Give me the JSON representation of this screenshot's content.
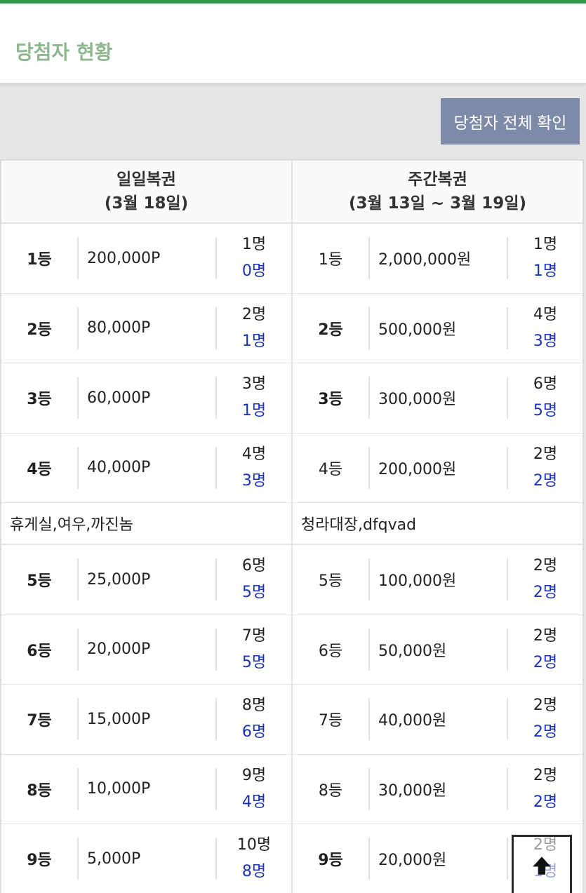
{
  "header": {
    "title": "당첨자 현황"
  },
  "actions": {
    "view_all_label": "당첨자 전체 확인"
  },
  "columns": [
    {
      "title": "일일복권",
      "period": "(3월 18일)"
    },
    {
      "title": "주간복권",
      "period": "(3월 13일 ~ 3월 19일)"
    }
  ],
  "daily": [
    {
      "rank": "1등",
      "prize": "200,000P",
      "total": "1명",
      "won": "0명"
    },
    {
      "rank": "2등",
      "prize": "80,000P",
      "total": "2명",
      "won": "1명"
    },
    {
      "rank": "3등",
      "prize": "60,000P",
      "total": "3명",
      "won": "1명"
    },
    {
      "rank": "4등",
      "prize": "40,000P",
      "total": "4명",
      "won": "3명"
    },
    {
      "rank": "5등",
      "prize": "25,000P",
      "total": "6명",
      "won": "5명"
    },
    {
      "rank": "6등",
      "prize": "20,000P",
      "total": "7명",
      "won": "5명"
    },
    {
      "rank": "7등",
      "prize": "15,000P",
      "total": "8명",
      "won": "6명"
    },
    {
      "rank": "8등",
      "prize": "10,000P",
      "total": "9명",
      "won": "4명"
    },
    {
      "rank": "9등",
      "prize": "5,000P",
      "total": "10명",
      "won": "8명"
    }
  ],
  "weekly": [
    {
      "rank": "1등",
      "prize": "2,000,000원",
      "total": "1명",
      "won": "1명"
    },
    {
      "rank": "2등",
      "prize": "500,000원",
      "total": "4명",
      "won": "3명"
    },
    {
      "rank": "3등",
      "prize": "300,000원",
      "total": "6명",
      "won": "5명"
    },
    {
      "rank": "4등",
      "prize": "200,000원",
      "total": "2명",
      "won": "2명"
    },
    {
      "rank": "5등",
      "prize": "100,000원",
      "total": "2명",
      "won": "2명"
    },
    {
      "rank": "6등",
      "prize": "50,000원",
      "total": "2명",
      "won": "2명"
    },
    {
      "rank": "7등",
      "prize": "40,000원",
      "total": "2명",
      "won": "2명"
    },
    {
      "rank": "8등",
      "prize": "30,000원",
      "total": "2명",
      "won": "2명"
    },
    {
      "rank": "9등",
      "prize": "20,000원",
      "total": "2명",
      "won": "1명"
    }
  ],
  "winners": {
    "daily": "휴게실,여우,까진놈",
    "weekly": "청라대장,dfqvad"
  },
  "scroll_top_icon": "arrow-up-icon",
  "colors": {
    "accent_bar": "#2f9a4a",
    "title": "#8fb78f",
    "button": "#7d8aa8",
    "won_count": "#1a32b8"
  }
}
